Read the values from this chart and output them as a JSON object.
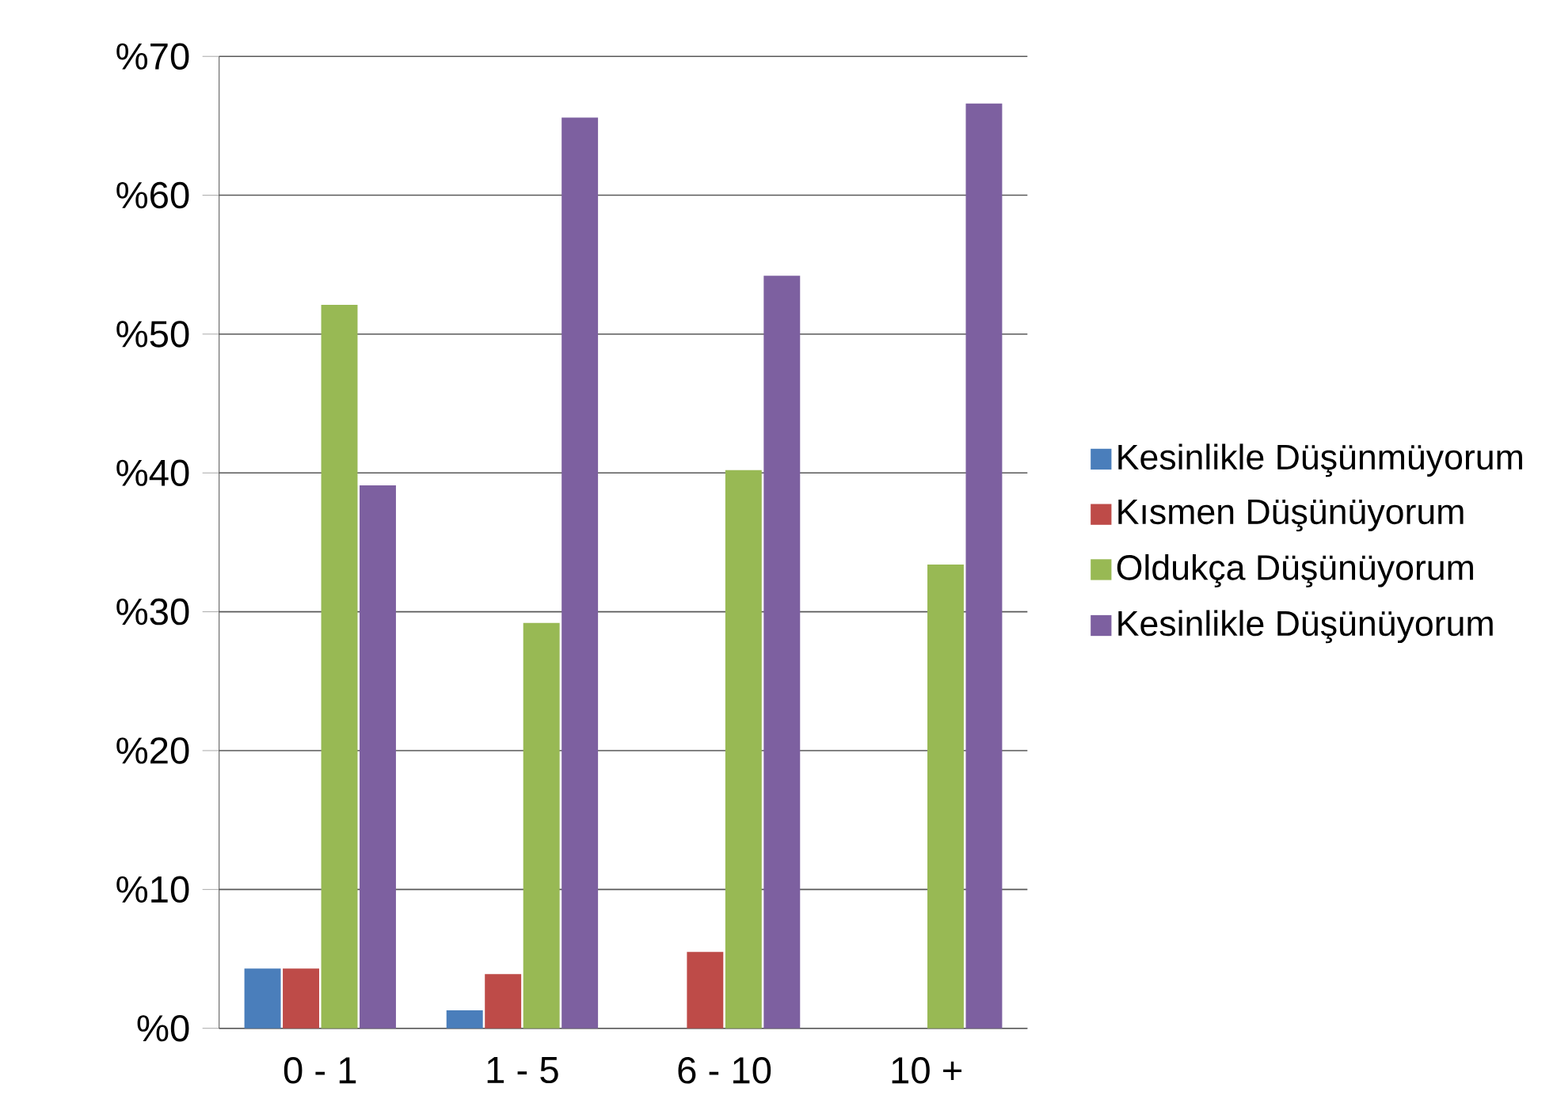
{
  "chart_data": {
    "type": "bar",
    "categories": [
      "0 - 1",
      "1 - 5",
      "6 - 10",
      "10 +"
    ],
    "series": [
      {
        "name": "Kesinlikle Düşünmüyorum",
        "color": "#4a7ebb",
        "values": [
          4.3,
          1.3,
          0,
          0
        ]
      },
      {
        "name": "Kısmen Düşünüyorum",
        "color": "#be4b48",
        "values": [
          4.3,
          3.9,
          5.5,
          0
        ]
      },
      {
        "name": "Oldukça Düşünüyorum",
        "color": "#98b954",
        "values": [
          52.1,
          29.2,
          40.2,
          33.4
        ]
      },
      {
        "name": "Kesinlikle Düşünüyorum",
        "color": "#7d60a0",
        "values": [
          39.1,
          65.6,
          54.2,
          66.6
        ]
      }
    ],
    "ylim": [
      0,
      70
    ],
    "yticks": [
      {
        "value": 0,
        "label": "%0"
      },
      {
        "value": 10,
        "label": "%10"
      },
      {
        "value": 20,
        "label": "%20"
      },
      {
        "value": 30,
        "label": "%30"
      },
      {
        "value": 40,
        "label": "%40"
      },
      {
        "value": 50,
        "label": "%50"
      },
      {
        "value": 60,
        "label": "%60"
      },
      {
        "value": 70,
        "label": "%70"
      }
    ],
    "grid": "y",
    "legend": "right"
  }
}
